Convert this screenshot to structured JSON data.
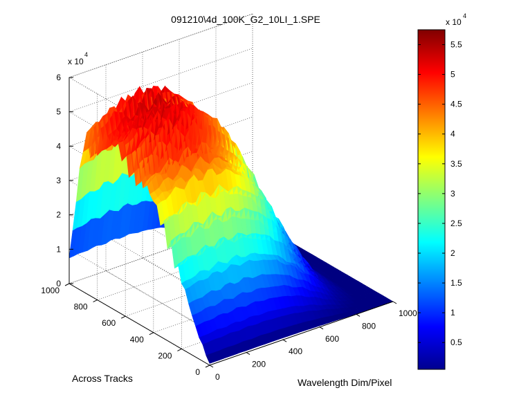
{
  "chart_data": {
    "type": "surface3d",
    "title": "091210\\4d_100K_G2_10LI_1.SPE",
    "xlabel": "Wavelength Dim/Pixel",
    "ylabel": "Across Tracks",
    "zlabel": "",
    "x_range": [
      0,
      1000
    ],
    "y_range": [
      0,
      1000
    ],
    "z_range": [
      0,
      60000
    ],
    "x_ticks": [
      "0",
      "200",
      "400",
      "600",
      "800",
      "1000"
    ],
    "y_ticks": [
      "0",
      "200",
      "400",
      "600",
      "800",
      "1000"
    ],
    "z_ticks": [
      "0",
      "1",
      "2",
      "3",
      "4",
      "5",
      "6"
    ],
    "z_multiplier": "x 10",
    "z_multiplier_exp": "4",
    "colormap": "jet",
    "grid": true,
    "peak_value": 57000,
    "profile_across_tracks": {
      "y": [
        0,
        100,
        200,
        300,
        400,
        500,
        600,
        700,
        800,
        900,
        1000
      ],
      "relative": [
        0.01,
        0.18,
        0.42,
        0.63,
        0.8,
        0.92,
        0.98,
        1.0,
        0.99,
        0.9,
        0.15
      ]
    },
    "profile_wavelength": {
      "x": [
        0,
        100,
        200,
        300,
        400,
        500,
        600,
        700,
        800,
        900,
        1000
      ],
      "relative": [
        0.9,
        0.96,
        0.99,
        1.0,
        0.96,
        0.86,
        0.66,
        0.4,
        0.14,
        0.02,
        0.0
      ]
    },
    "colorbar": {
      "ticks": [
        "0.5",
        "1",
        "1.5",
        "2",
        "2.5",
        "3",
        "3.5",
        "4",
        "4.5",
        "5",
        "5.5"
      ],
      "tick_values": [
        5000,
        10000,
        15000,
        20000,
        25000,
        30000,
        35000,
        40000,
        45000,
        50000,
        55000
      ],
      "range": [
        500,
        57500
      ],
      "multiplier": "x 10",
      "multiplier_exp": "4"
    }
  }
}
